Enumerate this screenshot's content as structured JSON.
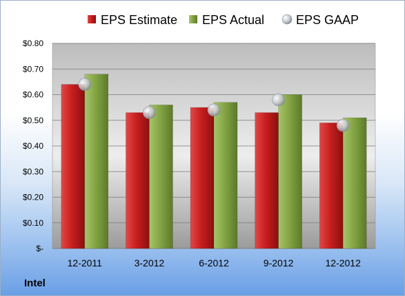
{
  "company": "Intel",
  "chart_data": {
    "type": "bar",
    "categories": [
      "12-2011",
      "3-2012",
      "6-2012",
      "9-2012",
      "12-2012"
    ],
    "series": [
      {
        "name": "EPS Estimate",
        "kind": "bar",
        "color": "#cc2222",
        "values": [
          0.64,
          0.53,
          0.55,
          0.53,
          0.49
        ]
      },
      {
        "name": "EPS Actual",
        "kind": "bar",
        "color": "#86a846",
        "values": [
          0.68,
          0.56,
          0.57,
          0.6,
          0.51
        ]
      },
      {
        "name": "EPS GAAP",
        "kind": "marker",
        "color": "#c8ccd2",
        "values": [
          0.64,
          0.53,
          0.54,
          0.58,
          0.48
        ]
      }
    ],
    "yticks": [
      "$-",
      "$0.10",
      "$0.20",
      "$0.30",
      "$0.40",
      "$0.50",
      "$0.60",
      "$0.70",
      "$0.80"
    ],
    "ylim": [
      0,
      0.8
    ],
    "ytick_step": 0.1,
    "grid": true,
    "legend_position": "top"
  }
}
